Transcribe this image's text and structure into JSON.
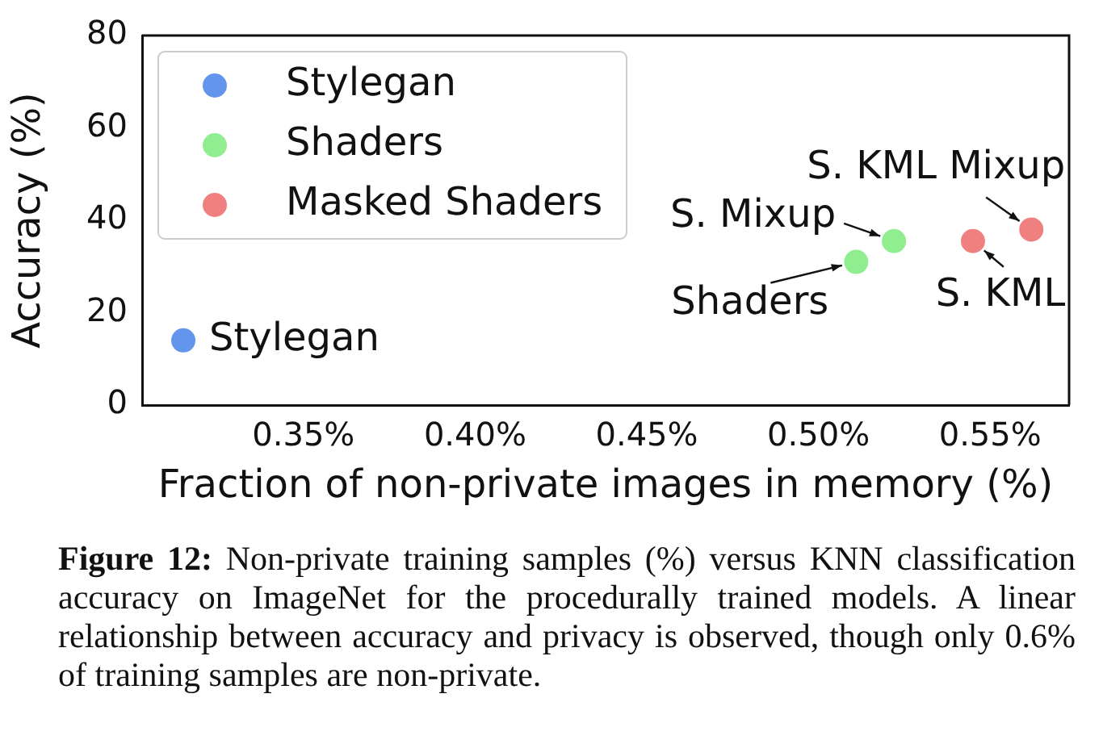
{
  "chart_data": {
    "type": "scatter",
    "xlabel": "Fraction of non-private images in memory (%)",
    "ylabel": "Accuracy (%)",
    "series": [
      {
        "name": "Stylegan",
        "color": "#6495ed",
        "x": [
          0.315
        ],
        "values": [
          14
        ]
      },
      {
        "name": "Shaders",
        "color": "#90ee90",
        "x": [
          0.511,
          0.522
        ],
        "values": [
          31,
          35.5
        ]
      },
      {
        "name": "Masked Shaders",
        "color": "#f08080",
        "x": [
          0.545,
          0.562
        ],
        "values": [
          35.5,
          38
        ]
      }
    ],
    "xlim": [
      0.303,
      0.573
    ],
    "xticks": [
      {
        "value": 0.35,
        "label": "0.35%"
      },
      {
        "value": 0.4,
        "label": "0.40%"
      },
      {
        "value": 0.45,
        "label": "0.45%"
      },
      {
        "value": 0.5,
        "label": "0.50%"
      },
      {
        "value": 0.55,
        "label": "0.55%"
      }
    ],
    "ylim": [
      0,
      80
    ],
    "yticks": [
      0,
      20,
      40,
      60,
      80
    ],
    "grid": false,
    "legend": "top left",
    "marker": "circle",
    "annotations": [
      {
        "text": "Stylegan",
        "x": 0.315,
        "y": 14
      },
      {
        "text": "Shaders",
        "x": 0.511,
        "y": 31
      },
      {
        "text": "S. Mixup",
        "x": 0.522,
        "y": 35.5
      },
      {
        "text": "S. KML",
        "x": 0.545,
        "y": 35.5
      },
      {
        "text": "S. KML Mixup",
        "x": 0.562,
        "y": 38
      },
      "Figure 12: Non-private training samples (%) versus KNN classification accuracy on ImageNet for the procedurally trained models. A linear relationship between accuracy and privacy is observed, though only 0.6% of training samples are non-private."
    ]
  }
}
